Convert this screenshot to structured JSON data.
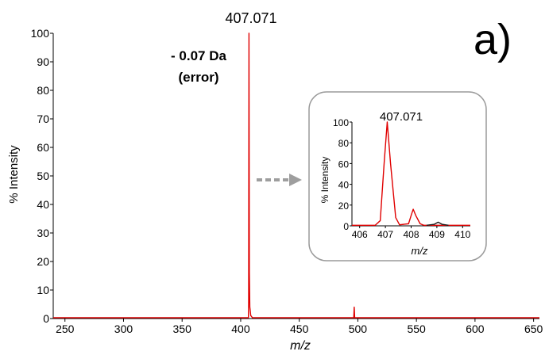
{
  "chart_data": [
    {
      "type": "line",
      "panel_label": "a)",
      "xlabel": "m/z",
      "ylabel": "% Intensity",
      "xlim": [
        240,
        655
      ],
      "ylim": [
        0,
        100
      ],
      "x_ticks": [
        250,
        300,
        350,
        400,
        450,
        500,
        550,
        600,
        650
      ],
      "y_ticks": [
        0,
        10,
        20,
        30,
        40,
        50,
        60,
        70,
        80,
        90,
        100
      ],
      "peak_label": "407.071",
      "error_annotation": [
        "- 0.07 Da",
        "(error)"
      ],
      "line_color": "#e00000",
      "series": [
        {
          "points": [
            [
              240,
              0.3
            ],
            [
              406.6,
              0.3
            ],
            [
              406.8,
              6
            ],
            [
              407.071,
              100
            ],
            [
              407.4,
              16
            ],
            [
              407.8,
              4
            ],
            [
              408.1,
              3
            ],
            [
              408.6,
              1
            ],
            [
              409.1,
              0.8
            ],
            [
              410,
              0.3
            ],
            [
              496.5,
              0.3
            ],
            [
              496.9,
              4
            ],
            [
              497.3,
              0.3
            ],
            [
              655,
              0.3
            ]
          ]
        }
      ]
    },
    {
      "type": "line",
      "title": "407.071",
      "xlabel": "m/z",
      "ylabel": "% Intensity",
      "xlim": [
        405.7,
        410.3
      ],
      "ylim": [
        0,
        100
      ],
      "x_ticks": [
        406,
        407,
        408,
        409,
        410
      ],
      "y_ticks": [
        0,
        20,
        40,
        60,
        80,
        100
      ],
      "arrow_color": "#9e9e9e",
      "series": [
        {
          "color": "#e00000",
          "points": [
            [
              405.7,
              0.5
            ],
            [
              406.6,
              0.5
            ],
            [
              406.8,
              5
            ],
            [
              406.95,
              60
            ],
            [
              407.071,
              100
            ],
            [
              407.2,
              60
            ],
            [
              407.4,
              8
            ],
            [
              407.55,
              1
            ],
            [
              407.9,
              2
            ],
            [
              408.0,
              10
            ],
            [
              408.08,
              16
            ],
            [
              408.18,
              10
            ],
            [
              408.35,
              2
            ],
            [
              408.5,
              0.5
            ],
            [
              410.3,
              0.5
            ]
          ]
        },
        {
          "color": "#1a1a1a",
          "points": [
            [
              408.6,
              0.5
            ],
            [
              408.9,
              1.5
            ],
            [
              409.05,
              3.5
            ],
            [
              409.2,
              1.5
            ],
            [
              409.45,
              0.5
            ]
          ]
        }
      ]
    }
  ]
}
